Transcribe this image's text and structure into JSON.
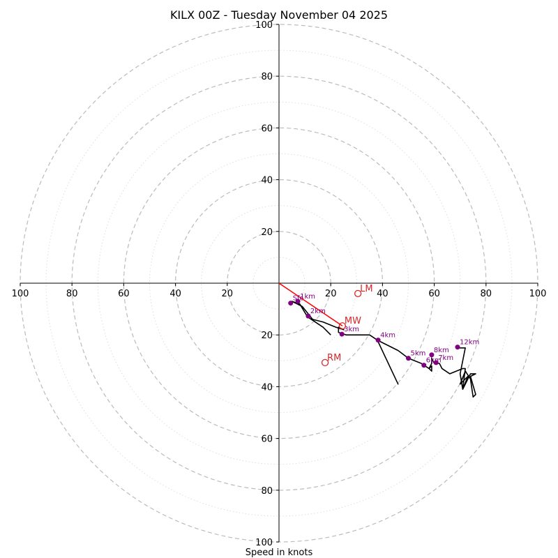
{
  "chart_data": {
    "type": "hodograph",
    "title": "KILX 00Z - Tuesday November 04 2025",
    "xlabel": "Speed in knots",
    "units": "kt",
    "range": [
      -100,
      100
    ],
    "major_rings": [
      20,
      40,
      60,
      80,
      100
    ],
    "minor_rings": [
      10,
      30,
      50,
      70,
      90
    ],
    "ticks": [
      {
        "v": -100,
        "label": "100"
      },
      {
        "v": -80,
        "label": "80"
      },
      {
        "v": -60,
        "label": "60"
      },
      {
        "v": -40,
        "label": "40"
      },
      {
        "v": -20,
        "label": "20"
      },
      {
        "v": 20,
        "label": "20"
      },
      {
        "v": 40,
        "label": "40"
      },
      {
        "v": 60,
        "label": "60"
      },
      {
        "v": 80,
        "label": "80"
      },
      {
        "v": 100,
        "label": "100"
      }
    ],
    "hodo_trace": [
      [
        20,
        -20
      ],
      [
        17,
        -17
      ],
      [
        11,
        -13
      ],
      [
        8,
        -8
      ],
      [
        5,
        -7
      ],
      [
        9,
        -9
      ],
      [
        13,
        -14
      ],
      [
        17,
        -15
      ],
      [
        22,
        -17
      ],
      [
        25,
        -18
      ],
      [
        23,
        -17
      ],
      [
        23,
        -19
      ],
      [
        26,
        -20
      ],
      [
        32,
        -20
      ],
      [
        35,
        -20
      ],
      [
        38,
        -22
      ],
      [
        46,
        -39
      ],
      [
        38,
        -22
      ],
      [
        46,
        -26
      ],
      [
        50,
        -29
      ],
      [
        55,
        -31
      ],
      [
        58,
        -33
      ],
      [
        59,
        -34
      ],
      [
        59,
        -32
      ],
      [
        58,
        -33
      ],
      [
        59,
        -31
      ],
      [
        59,
        -29
      ],
      [
        60,
        -31
      ],
      [
        62,
        -31
      ],
      [
        63,
        -33
      ],
      [
        66,
        -35
      ],
      [
        71,
        -33
      ],
      [
        72,
        -33
      ],
      [
        71,
        -41
      ],
      [
        74,
        -35
      ],
      [
        76,
        -35
      ],
      [
        74,
        -36
      ],
      [
        76,
        -43
      ],
      [
        75,
        -44
      ],
      [
        74,
        -37
      ],
      [
        72,
        -34
      ],
      [
        70,
        -39
      ],
      [
        73,
        -36
      ],
      [
        71,
        -41
      ],
      [
        70,
        -35
      ],
      [
        72,
        -25
      ],
      [
        69,
        -25
      ]
    ],
    "height_markers": [
      {
        "label": "Sfc",
        "u": 4.5,
        "v": -7.7
      },
      {
        "label": "1km",
        "u": 7.3,
        "v": -7.0
      },
      {
        "label": "2km",
        "u": 11.3,
        "v": -12.7
      },
      {
        "label": "3km",
        "u": 24.3,
        "v": -19.7
      },
      {
        "label": "4km",
        "u": 38.3,
        "v": -22.0
      },
      {
        "label": "5km",
        "u": 50.0,
        "v": -29.0
      },
      {
        "label": "6km",
        "u": 56.0,
        "v": -31.7
      },
      {
        "label": "7km",
        "u": 60.7,
        "v": -30.7
      },
      {
        "label": "8km",
        "u": 59.0,
        "v": -27.7
      },
      {
        "label": "12km",
        "u": 69.0,
        "v": -24.7
      }
    ],
    "storm_motion": [
      {
        "label": "LM",
        "u": 30.5,
        "v": -4.0
      },
      {
        "label": "MW",
        "u": 24.5,
        "v": -16.5
      },
      {
        "label": "RM",
        "u": 17.8,
        "v": -30.7
      }
    ],
    "shear_vector": {
      "from": [
        0,
        0
      ],
      "to": [
        24.5,
        -16.5
      ]
    },
    "colors": {
      "trace": "#000000",
      "marker": "#800080",
      "motion": "#d62728",
      "shear": "#ff0000",
      "major_ring": "#bbbbbb",
      "minor_ring": "#dddddd"
    }
  }
}
